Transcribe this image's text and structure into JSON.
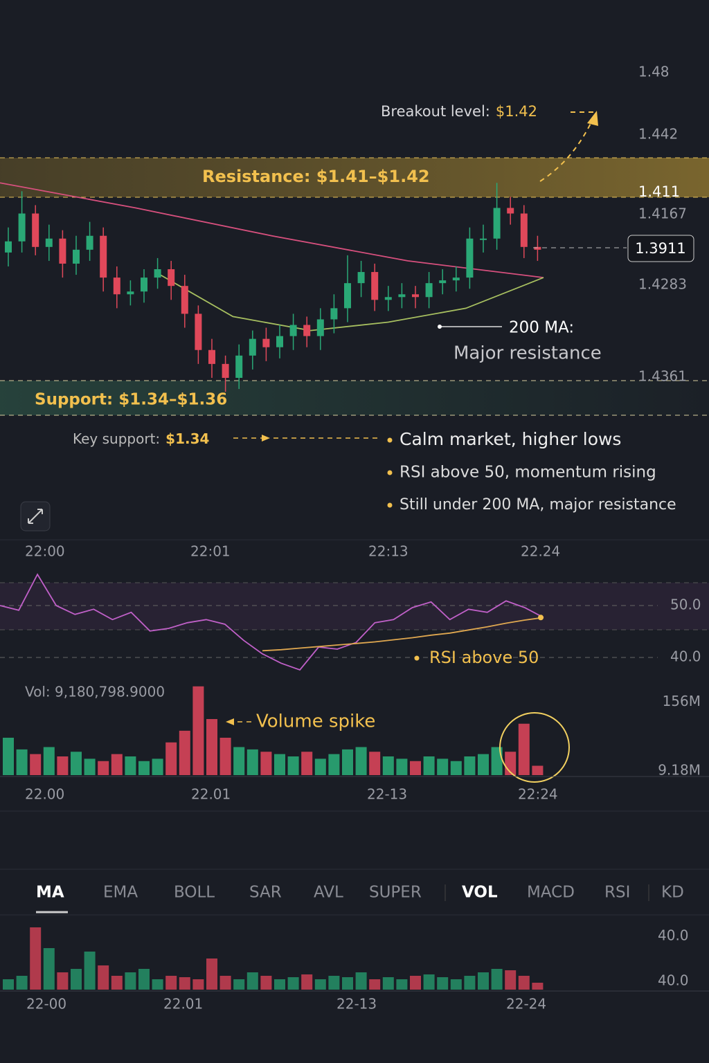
{
  "price_chart": {
    "price_labels": [
      "1.48",
      "1.442",
      "1.411",
      "1.4167",
      "1.3911",
      "1.4283",
      "1.4361"
    ],
    "ylim": [
      1.3251,
      1.4518
    ],
    "open": [
      1.386,
      1.39,
      1.4,
      1.388,
      1.391,
      1.382,
      1.387,
      1.392,
      1.377,
      1.371,
      1.372,
      1.377,
      1.38,
      1.374,
      1.364,
      1.351,
      1.346,
      1.341,
      1.349,
      1.355,
      1.352,
      1.356,
      1.36,
      1.356,
      1.362,
      1.366,
      1.375,
      1.379,
      1.369,
      1.37,
      1.371,
      1.37,
      1.375,
      1.376,
      1.377,
      1.391,
      1.391,
      1.402,
      1.4,
      1.388
    ],
    "close": [
      1.39,
      1.4,
      1.388,
      1.391,
      1.382,
      1.387,
      1.392,
      1.377,
      1.371,
      1.372,
      1.377,
      1.38,
      1.374,
      1.364,
      1.351,
      1.346,
      1.341,
      1.349,
      1.355,
      1.352,
      1.356,
      1.36,
      1.356,
      1.362,
      1.366,
      1.375,
      1.379,
      1.369,
      1.37,
      1.371,
      1.37,
      1.375,
      1.376,
      1.377,
      1.391,
      1.391,
      1.402,
      1.4,
      1.388,
      1.387
    ],
    "high": [
      1.395,
      1.408,
      1.403,
      1.396,
      1.394,
      1.392,
      1.397,
      1.395,
      1.381,
      1.376,
      1.38,
      1.384,
      1.383,
      1.378,
      1.367,
      1.355,
      1.349,
      1.353,
      1.358,
      1.359,
      1.36,
      1.364,
      1.363,
      1.366,
      1.371,
      1.385,
      1.383,
      1.382,
      1.374,
      1.375,
      1.374,
      1.379,
      1.38,
      1.381,
      1.395,
      1.396,
      1.411,
      1.406,
      1.403,
      1.392
    ],
    "low": [
      1.381,
      1.386,
      1.385,
      1.383,
      1.377,
      1.378,
      1.383,
      1.372,
      1.366,
      1.367,
      1.368,
      1.373,
      1.369,
      1.359,
      1.346,
      1.341,
      1.336,
      1.337,
      1.344,
      1.347,
      1.348,
      1.351,
      1.352,
      1.351,
      1.357,
      1.361,
      1.37,
      1.365,
      1.365,
      1.366,
      1.366,
      1.366,
      1.371,
      1.372,
      1.373,
      1.386,
      1.387,
      1.396,
      1.384,
      1.383
    ],
    "ma200": [
      1.411,
      1.402,
      1.392,
      1.383,
      1.377
    ],
    "ma50": [
      null,
      null,
      1.379,
      1.363,
      1.358,
      1.361,
      1.366,
      1.377
    ],
    "breakout_label": "Breakout level:",
    "breakout_value": "$1.42",
    "resistance": "Resistance: $1.41–$1.42",
    "ma_note_title": "200 MA:",
    "ma_note_text": "Major resistance",
    "support": "Support: $1.34–$1.36",
    "key_support_label": "Key support:",
    "key_support_value": "$1.34",
    "bullets": [
      "Calm market, higher lows",
      "RSI above 50, momentum rising",
      "Still under 200 MA, major resistance"
    ],
    "time_labels": [
      "22:00",
      "22:01",
      "22:13",
      "22.24"
    ]
  },
  "rsi": {
    "values": [
      50.0,
      49.1,
      56.0,
      50.0,
      48.3,
      49.3,
      47.3,
      48.7,
      45.1,
      45.6,
      46.7,
      47.3,
      46.4,
      43.3,
      40.7,
      38.9,
      37.6,
      42.0,
      41.6,
      42.9,
      46.7,
      47.3,
      49.6,
      50.7,
      47.3,
      49.3,
      48.7,
      50.9,
      49.6,
      47.7
    ],
    "ma": [
      null,
      null,
      null,
      null,
      null,
      null,
      null,
      null,
      null,
      null,
      null,
      null,
      null,
      null,
      41.3,
      41.5,
      41.8,
      42.1,
      42.4,
      42.7,
      43.0,
      43.4,
      43.8,
      44.3,
      44.7,
      45.3,
      45.9,
      46.6,
      47.2,
      47.7
    ],
    "ylim": [
      36,
      57
    ],
    "yticks": [
      {
        "value": 50,
        "label": "50.0"
      },
      {
        "value": 40,
        "label": "40.0"
      }
    ],
    "annotation": "RSI above 50"
  },
  "volume": {
    "title": "Vol: 9,180,798.9000",
    "values": [
      80,
      55,
      45,
      60,
      40,
      50,
      35,
      30,
      45,
      40,
      30,
      35,
      70,
      95,
      190,
      120,
      80,
      60,
      55,
      50,
      45,
      40,
      50,
      35,
      45,
      55,
      60,
      50,
      40,
      35,
      30,
      40,
      35,
      30,
      40,
      45,
      60,
      50,
      110,
      20
    ],
    "ylim": [
      0,
      200
    ],
    "yticks": [
      {
        "value": 156,
        "label": "156M"
      },
      {
        "value": 9.18,
        "label": "9.18M"
      }
    ],
    "annotation": "Volume spike",
    "time_labels": [
      "22.00",
      "22.01",
      "22-13",
      "22:24"
    ]
  },
  "tabs": [
    "MA",
    "EMA",
    "BOLL",
    "SAR",
    "AVL",
    "SUPER",
    "VOL",
    "MACD",
    "RSI",
    "KD"
  ],
  "mini_volume": {
    "values": [
      15,
      20,
      90,
      60,
      25,
      30,
      55,
      35,
      20,
      25,
      30,
      15,
      20,
      18,
      15,
      45,
      20,
      15,
      25,
      20,
      15,
      18,
      22,
      15,
      20,
      18,
      25,
      15,
      18,
      15,
      20,
      22,
      18,
      15,
      20,
      25,
      30,
      28,
      20,
      10
    ],
    "ylim": [
      0,
      100
    ],
    "labels": [
      "40.0",
      "40.0"
    ],
    "time_labels": [
      "22-00",
      "22.01",
      "22-13",
      "22-24"
    ]
  }
}
